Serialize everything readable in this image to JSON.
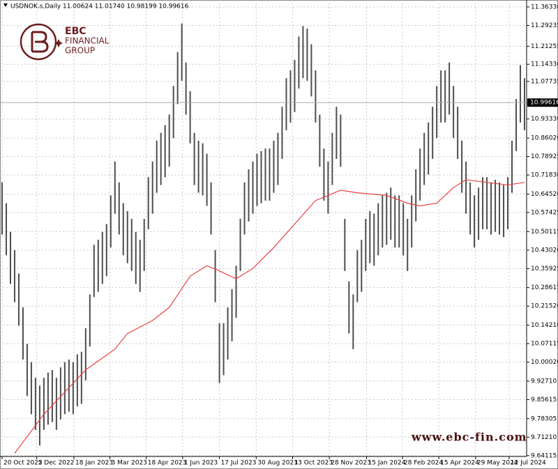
{
  "logo": {
    "name": "EBC",
    "line1": "FINANCIAL",
    "line2": "GROUP"
  },
  "watermark": "www.ebc-fin.com",
  "chart_data": {
    "type": "range",
    "title": "USDNOK.s,Daily 11.00624 11.01740 10.98199 10.99616",
    "color": "#4d4d4d",
    "high": [
      10.69,
      10.61,
      10.5,
      10.43,
      10.34,
      10.21,
      10.07,
      10.0,
      9.94,
      9.91,
      9.94,
      9.96,
      9.97,
      9.94,
      9.98,
      10.0,
      10.01,
      10.0,
      10.03,
      10.04,
      10.13,
      10.26,
      10.45,
      10.47,
      10.5,
      10.53,
      10.64,
      10.77,
      10.69,
      10.61,
      10.58,
      10.55,
      10.5,
      10.47,
      10.55,
      10.71,
      10.77,
      10.85,
      10.88,
      10.91,
      10.95,
      11.06,
      11.19,
      11.3,
      11.15,
      11.04,
      10.88,
      10.85,
      10.84,
      10.8,
      10.69,
      10.43,
      10.15,
      10.15,
      10.21,
      10.28,
      10.37,
      10.55,
      10.69,
      10.74,
      10.77,
      10.8,
      10.81,
      10.82,
      10.82,
      10.85,
      10.88,
      10.98,
      11.09,
      11.12,
      11.16,
      11.25,
      11.29,
      11.28,
      11.22,
      11.12,
      10.95,
      10.82,
      10.77,
      10.88,
      10.98,
      10.95,
      10.55,
      10.31,
      10.26,
      10.43,
      10.47,
      10.55,
      10.58,
      10.57,
      10.61,
      10.64,
      10.65,
      10.67,
      10.64,
      10.64,
      10.61,
      10.55,
      10.64,
      10.74,
      10.82,
      10.88,
      10.92,
      10.98,
      11.06,
      11.12,
      11.12,
      11.15,
      11.06,
      10.98,
      10.85,
      10.77,
      10.69,
      10.64,
      10.67,
      10.71,
      10.71,
      10.69,
      10.7,
      10.69,
      10.68,
      10.71,
      10.85,
      11.01,
      11.14,
      11.09
    ],
    "low": [
      10.49,
      10.41,
      10.3,
      10.23,
      10.14,
      10.01,
      9.87,
      9.8,
      9.74,
      9.68,
      9.74,
      9.76,
      9.77,
      9.74,
      9.78,
      9.8,
      9.81,
      9.8,
      9.83,
      9.84,
      9.93,
      10.06,
      10.25,
      10.27,
      10.3,
      10.33,
      10.44,
      10.57,
      10.49,
      10.41,
      10.38,
      10.35,
      10.3,
      10.27,
      10.35,
      10.51,
      10.57,
      10.65,
      10.68,
      10.71,
      10.75,
      10.86,
      10.99,
      11.08,
      10.95,
      10.84,
      10.68,
      10.65,
      10.64,
      10.6,
      10.49,
      10.23,
      9.92,
      9.95,
      10.01,
      10.08,
      10.17,
      10.35,
      10.49,
      10.54,
      10.57,
      10.6,
      10.61,
      10.62,
      10.62,
      10.65,
      10.68,
      10.78,
      10.89,
      10.92,
      10.96,
      11.05,
      11.09,
      11.08,
      11.02,
      10.92,
      10.75,
      10.62,
      10.57,
      10.68,
      10.78,
      10.75,
      10.35,
      10.11,
      10.05,
      10.23,
      10.27,
      10.35,
      10.38,
      10.37,
      10.41,
      10.44,
      10.45,
      10.47,
      10.44,
      10.44,
      10.41,
      10.35,
      10.44,
      10.54,
      10.62,
      10.68,
      10.72,
      10.78,
      10.86,
      10.92,
      10.92,
      10.95,
      10.86,
      10.78,
      10.65,
      10.57,
      10.49,
      10.44,
      10.47,
      10.51,
      10.51,
      10.49,
      10.5,
      10.49,
      10.48,
      10.51,
      10.65,
      10.81,
      10.92,
      10.89
    ],
    "moving_average": {
      "color": "#e8423f",
      "x": [
        3,
        10,
        20,
        27,
        30,
        36,
        40,
        45,
        49,
        52,
        56,
        60,
        65,
        70,
        75,
        81,
        85,
        92,
        97,
        100,
        104,
        108,
        111,
        116,
        121,
        125
      ],
      "values": [
        9.65,
        9.8,
        9.97,
        10.05,
        10.11,
        10.16,
        10.21,
        10.33,
        10.37,
        10.35,
        10.32,
        10.36,
        10.44,
        10.53,
        10.62,
        10.66,
        10.65,
        10.64,
        10.61,
        10.6,
        10.61,
        10.67,
        10.7,
        10.69,
        10.68,
        10.69
      ]
    },
    "last_price": 10.99616,
    "last_price_color": "#000000",
    "xlim": [
      -0.5,
      125.5
    ],
    "ylim": [
      9.638,
      11.39
    ],
    "grid": true,
    "xticks": [
      {
        "value": 0,
        "label": "20 Oct 2022"
      },
      {
        "value": 8.3,
        "label": "5 Dec 2022"
      },
      {
        "value": 17.2,
        "label": "18 Jan 2023"
      },
      {
        "value": 25.8,
        "label": "3 Mar 2023"
      },
      {
        "value": 34.5,
        "label": "18 Apr 2023"
      },
      {
        "value": 43.2,
        "label": "1 Jun 2023"
      },
      {
        "value": 52,
        "label": "17 Jul 2023"
      },
      {
        "value": 60.8,
        "label": "30 Aug 2023"
      },
      {
        "value": 69.5,
        "label": "13 Oct 2023"
      },
      {
        "value": 78.3,
        "label": "28 Nov 2023"
      },
      {
        "value": 87.2,
        "label": "15 Jan 2024"
      },
      {
        "value": 95.8,
        "label": "28 Feb 2024"
      },
      {
        "value": 104.5,
        "label": "15 Apr 2024"
      },
      {
        "value": 113.3,
        "label": "29 May 2024"
      },
      {
        "value": 121.3,
        "label": "12 Jul 2024"
      }
    ],
    "yticks": [
      {
        "value": 11.3633,
        "label": "11.36330"
      },
      {
        "value": 11.29235,
        "label": "11.29235"
      },
      {
        "value": 11.21255,
        "label": "11.21255"
      },
      {
        "value": 11.1433,
        "label": "11.14330"
      },
      {
        "value": 11.07735,
        "label": "11.07735"
      },
      {
        "value": 10.9333,
        "label": "10.93330"
      },
      {
        "value": 10.8602,
        "label": "10.86020"
      },
      {
        "value": 10.78925,
        "label": "10.78925"
      },
      {
        "value": 10.7183,
        "label": "10.71830"
      },
      {
        "value": 10.6452,
        "label": "10.64520"
      },
      {
        "value": 10.57425,
        "label": "10.57425"
      },
      {
        "value": 10.50115,
        "label": "10.50115"
      },
      {
        "value": 10.4302,
        "label": "10.43020"
      },
      {
        "value": 10.35925,
        "label": "10.35925"
      },
      {
        "value": 10.28615,
        "label": "10.28615"
      },
      {
        "value": 10.2152,
        "label": "10.21520"
      },
      {
        "value": 10.1421,
        "label": "10.14210"
      },
      {
        "value": 10.07115,
        "label": "10.07115"
      },
      {
        "value": 10.0002,
        "label": "10.00020"
      },
      {
        "value": 9.9271,
        "label": "9.92710"
      },
      {
        "value": 9.85615,
        "label": "9.85615"
      },
      {
        "value": 9.78305,
        "label": "9.78305"
      },
      {
        "value": 9.7121,
        "label": "9.71210"
      },
      {
        "value": 9.64115,
        "label": "9.64115"
      }
    ]
  }
}
